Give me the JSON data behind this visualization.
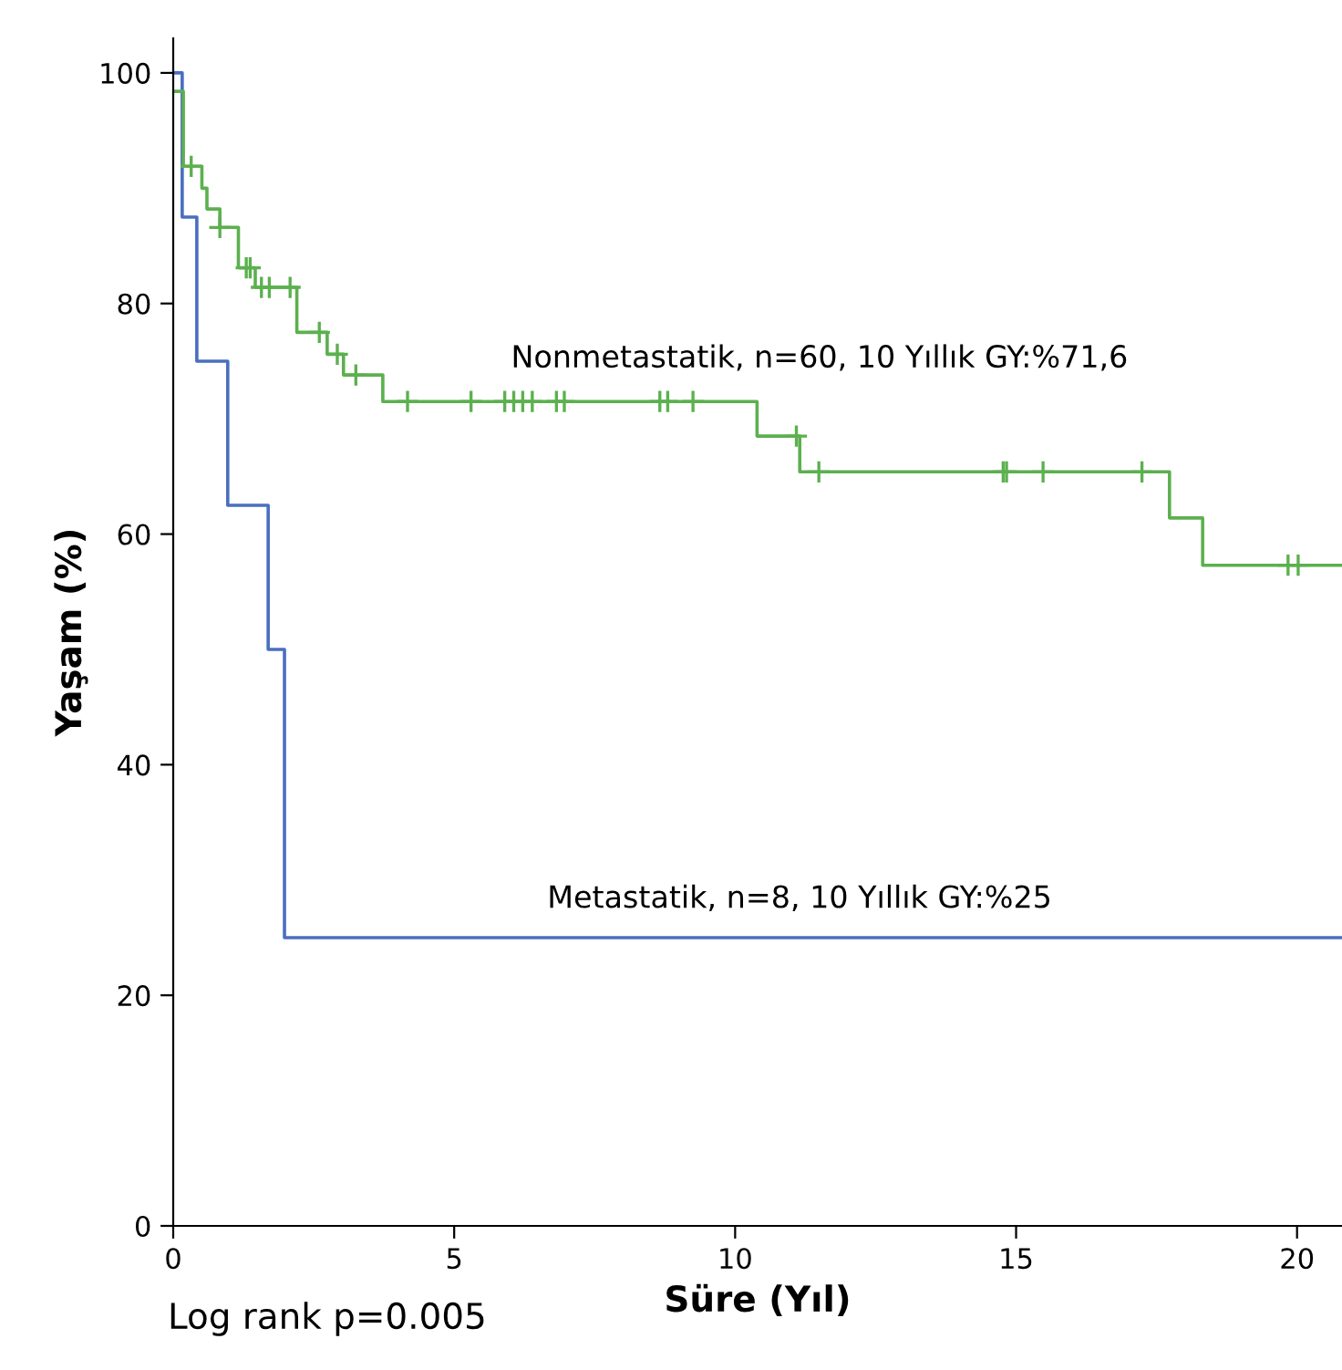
{
  "chart_data": {
    "type": "step",
    "xlabel": "Süre (Yıl)",
    "ylabel": "Yaşam (%)",
    "xlim": [
      0,
      20.8
    ],
    "ylim": [
      0,
      103
    ],
    "xticks": [
      0,
      5,
      10,
      15,
      20
    ],
    "yticks": [
      0,
      20,
      40,
      60,
      80,
      100
    ],
    "grid": false,
    "series": [
      {
        "color": "#4a6fc0",
        "marker": "none",
        "x": [
          0,
          0.16,
          0.42,
          0.97,
          1.69,
          1.98,
          20.8
        ],
        "values": [
          100,
          87.5,
          75,
          62.5,
          50,
          25,
          25
        ]
      },
      {
        "color": "#5cb04f",
        "marker": "none",
        "x": [
          0,
          0.18,
          0.51,
          0.6,
          0.83,
          1.16,
          1.46,
          2.2,
          2.74,
          3.03,
          3.73,
          10.39,
          11.15,
          17.73,
          18.32,
          20.8
        ],
        "values": [
          98.4,
          91.9,
          90.0,
          88.2,
          86.6,
          83.1,
          81.4,
          77.5,
          75.6,
          73.8,
          71.5,
          68.5,
          65.4,
          61.4,
          57.3,
          57.3
        ]
      },
      {
        "type": "scatter",
        "color": "#5cb04f",
        "marker": "cross",
        "x": [
          0.32,
          0.83,
          1.3,
          1.37,
          1.57,
          1.71,
          2.08,
          2.6,
          2.92,
          3.25,
          4.17,
          5.3,
          5.9,
          6.06,
          6.22,
          6.39,
          6.82,
          6.96,
          8.66,
          8.8,
          9.25,
          11.09,
          11.49,
          14.77,
          14.83,
          15.48,
          17.24,
          19.84,
          20.02
        ],
        "values": [
          91.9,
          86.6,
          83.1,
          83.1,
          81.4,
          81.4,
          81.4,
          77.5,
          75.6,
          73.8,
          71.5,
          71.5,
          71.5,
          71.5,
          71.5,
          71.5,
          71.5,
          71.5,
          71.5,
          71.5,
          71.5,
          68.5,
          65.4,
          65.4,
          65.4,
          65.4,
          65.4,
          57.3,
          57.3
        ]
      }
    ],
    "annotations": [
      "Nonmetastatik, n=60, 10 Yıllık GY:%71,6",
      "Metastatik, n=8, 10 Yıllık GY:%25",
      "Log rank p=0.005"
    ]
  }
}
